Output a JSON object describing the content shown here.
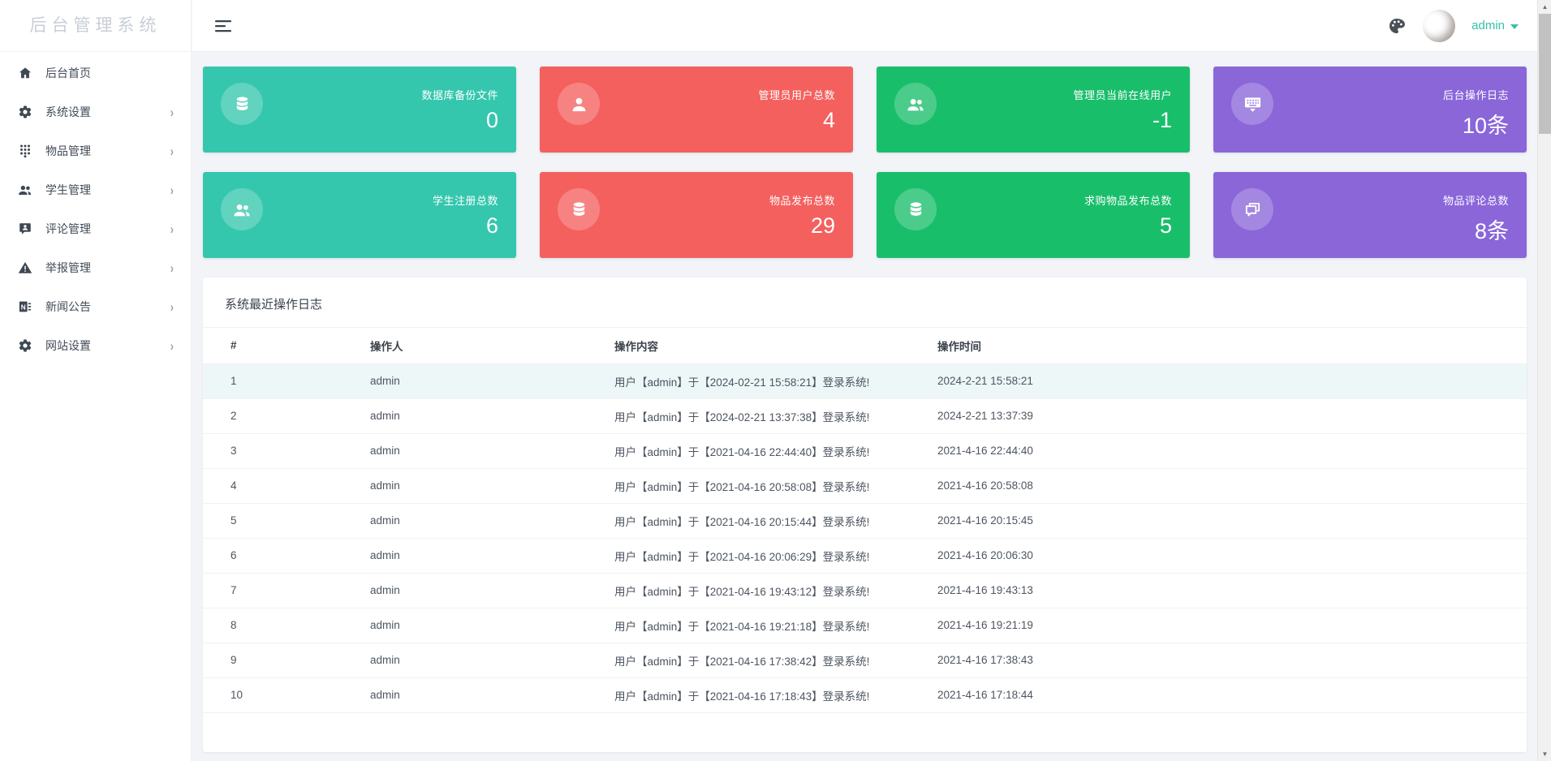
{
  "app": {
    "logo_title": "后台管理系统"
  },
  "header": {
    "username": "admin"
  },
  "sidebar": {
    "items": [
      {
        "key": "home",
        "icon": "home",
        "label": "后台首页",
        "has_children": false
      },
      {
        "key": "system-settings",
        "icon": "gear",
        "label": "系统设置",
        "has_children": true
      },
      {
        "key": "goods-management",
        "icon": "dialpad",
        "label": "物品管理",
        "has_children": true
      },
      {
        "key": "student-management",
        "icon": "users",
        "label": "学生管理",
        "has_children": true
      },
      {
        "key": "comment-management",
        "icon": "comment-user",
        "label": "评论管理",
        "has_children": true
      },
      {
        "key": "report-management",
        "icon": "warning-triangle",
        "label": "举报管理",
        "has_children": true
      },
      {
        "key": "news-announcement",
        "icon": "newspaper",
        "label": "新闻公告",
        "has_children": true
      },
      {
        "key": "site-settings",
        "icon": "gear",
        "label": "网站设置",
        "has_children": true
      }
    ]
  },
  "stat_cards": [
    {
      "key": "db-backup-files",
      "icon": "database",
      "label": "数据库备份文件",
      "value": "0",
      "color": "#35C7AE"
    },
    {
      "key": "admin-user-total",
      "icon": "user",
      "label": "管理员用户总数",
      "value": "4",
      "color": "#F4605E"
    },
    {
      "key": "admin-online-users",
      "icon": "users",
      "label": "管理员当前在线用户",
      "value": "-1",
      "color": "#19BE6B"
    },
    {
      "key": "backend-op-logs",
      "icon": "keyboard-hide",
      "label": "后台操作日志",
      "value": "10条",
      "color": "#8A66D9"
    },
    {
      "key": "student-register-total",
      "icon": "users",
      "label": "学生注册总数",
      "value": "6",
      "color": "#35C7AE"
    },
    {
      "key": "goods-publish-total",
      "icon": "database",
      "label": "物品发布总数",
      "value": "29",
      "color": "#F4605E"
    },
    {
      "key": "wanted-publish-total",
      "icon": "database",
      "label": "求购物品发布总数",
      "value": "5",
      "color": "#19BE6B"
    },
    {
      "key": "goods-comment-total",
      "icon": "forum",
      "label": "物品评论总数",
      "value": "8条",
      "color": "#8A66D9"
    }
  ],
  "log_panel": {
    "title": "系统最近操作日志",
    "columns": [
      "#",
      "操作人",
      "操作内容",
      "操作时间"
    ],
    "rows": [
      {
        "index": "1",
        "operator": "admin",
        "content": "用户【admin】于【2024-02-21 15:58:21】登录系统!",
        "time": "2024-2-21 15:58:21",
        "highlight": true
      },
      {
        "index": "2",
        "operator": "admin",
        "content": "用户【admin】于【2024-02-21 13:37:38】登录系统!",
        "time": "2024-2-21 13:37:39",
        "highlight": false
      },
      {
        "index": "3",
        "operator": "admin",
        "content": "用户【admin】于【2021-04-16 22:44:40】登录系统!",
        "time": "2021-4-16 22:44:40",
        "highlight": false
      },
      {
        "index": "4",
        "operator": "admin",
        "content": "用户【admin】于【2021-04-16 20:58:08】登录系统!",
        "time": "2021-4-16 20:58:08",
        "highlight": false
      },
      {
        "index": "5",
        "operator": "admin",
        "content": "用户【admin】于【2021-04-16 20:15:44】登录系统!",
        "time": "2021-4-16 20:15:45",
        "highlight": false
      },
      {
        "index": "6",
        "operator": "admin",
        "content": "用户【admin】于【2021-04-16 20:06:29】登录系统!",
        "time": "2021-4-16 20:06:30",
        "highlight": false
      },
      {
        "index": "7",
        "operator": "admin",
        "content": "用户【admin】于【2021-04-16 19:43:12】登录系统!",
        "time": "2021-4-16 19:43:13",
        "highlight": false
      },
      {
        "index": "8",
        "operator": "admin",
        "content": "用户【admin】于【2021-04-16 19:21:18】登录系统!",
        "time": "2021-4-16 19:21:19",
        "highlight": false
      },
      {
        "index": "9",
        "operator": "admin",
        "content": "用户【admin】于【2021-04-16 17:38:42】登录系统!",
        "time": "2021-4-16 17:38:43",
        "highlight": false
      },
      {
        "index": "10",
        "operator": "admin",
        "content": "用户【admin】于【2021-04-16 17:18:43】登录系统!",
        "time": "2021-4-16 17:18:44",
        "highlight": false
      }
    ]
  },
  "colors": {
    "teal": "#35C7AE",
    "red": "#F4605E",
    "green": "#19BE6B",
    "purple": "#8A66D9",
    "admin_link": "#35C1A9",
    "row_highlight": "#EDF7F8",
    "page_background": "#F2F4F8"
  }
}
